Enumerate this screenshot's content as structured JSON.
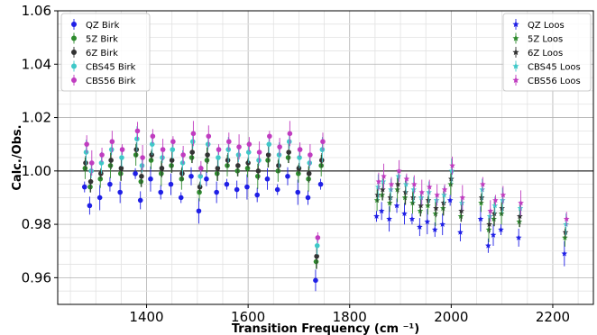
{
  "chart_data": {
    "type": "scatter",
    "xlabel": "Transition Frequency  (cm ⁻¹)",
    "ylabel": "Calc./Obs.",
    "xlim": [
      1225,
      2280
    ],
    "ylim": [
      0.95,
      1.06
    ],
    "xticks": [
      1400,
      1600,
      1800,
      2000,
      2200
    ],
    "yticks": [
      0.96,
      0.98,
      1.0,
      1.02,
      1.04,
      1.06
    ],
    "xtick_labels": [
      "1400",
      "1600",
      "1800",
      "2000",
      "2200"
    ],
    "ytick_labels": [
      "0.96",
      "0.98",
      "1.00",
      "1.02",
      "1.04",
      "1.06"
    ],
    "grid": true,
    "reference_line": 1.0,
    "legends": [
      {
        "placement": "upper-left",
        "entries": [
          "QZ Birk",
          "5Z Birk",
          "6Z Birk",
          "CBS45 Birk",
          "CBS56 Birk"
        ]
      },
      {
        "placement": "upper-right",
        "entries": [
          "QZ Loos",
          "5Z Loos",
          "6Z Loos",
          "CBS45 Loos",
          "CBS56 Loos"
        ]
      }
    ],
    "series": [
      {
        "name": "QZ Birk",
        "group": "birk",
        "color": "#1f1fe6",
        "marker": "circle",
        "offset": -0.009,
        "x": [
          1280,
          1290,
          1310,
          1330,
          1350,
          1380,
          1390,
          1410,
          1430,
          1450,
          1470,
          1490,
          1505,
          1520,
          1540,
          1560,
          1580,
          1600,
          1620,
          1640,
          1660,
          1680,
          1700,
          1720,
          1735,
          1745
        ],
        "y": [
          1.003,
          0.996,
          0.999,
          1.004,
          1.001,
          1.008,
          0.998,
          1.006,
          1.001,
          1.004,
          0.999,
          1.007,
          0.994,
          1.006,
          1.001,
          1.004,
          1.002,
          1.003,
          1.0,
          1.006,
          1.002,
          1.007,
          1.001,
          0.999,
          0.968,
          1.004
        ]
      },
      {
        "name": "5Z Birk",
        "group": "birk",
        "color": "#2e8b2e",
        "marker": "circle",
        "offset": -0.002,
        "x": [
          1280,
          1290,
          1310,
          1330,
          1350,
          1380,
          1390,
          1410,
          1430,
          1450,
          1470,
          1490,
          1505,
          1520,
          1540,
          1560,
          1580,
          1600,
          1620,
          1640,
          1660,
          1680,
          1700,
          1720,
          1735,
          1745
        ],
        "y": [
          1.003,
          0.996,
          0.999,
          1.004,
          1.001,
          1.008,
          0.998,
          1.006,
          1.001,
          1.004,
          0.999,
          1.007,
          0.994,
          1.006,
          1.001,
          1.004,
          1.002,
          1.003,
          1.0,
          1.006,
          1.002,
          1.007,
          1.001,
          0.999,
          0.968,
          1.004
        ]
      },
      {
        "name": "6Z Birk",
        "group": "birk",
        "color": "#333333",
        "marker": "circle",
        "offset": 0.0,
        "x": [
          1280,
          1290,
          1310,
          1330,
          1350,
          1380,
          1390,
          1410,
          1430,
          1450,
          1470,
          1490,
          1505,
          1520,
          1540,
          1560,
          1580,
          1600,
          1620,
          1640,
          1660,
          1680,
          1700,
          1720,
          1735,
          1745
        ],
        "y": [
          1.003,
          0.996,
          0.999,
          1.004,
          1.001,
          1.008,
          0.998,
          1.006,
          1.001,
          1.004,
          0.999,
          1.007,
          0.994,
          1.006,
          1.001,
          1.004,
          1.002,
          1.003,
          1.0,
          1.006,
          1.002,
          1.007,
          1.001,
          0.999,
          0.968,
          1.004
        ]
      },
      {
        "name": "CBS45 Birk",
        "group": "birk",
        "color": "#3fc8c8",
        "marker": "circle",
        "offset": 0.004,
        "x": [
          1280,
          1290,
          1310,
          1330,
          1350,
          1380,
          1390,
          1410,
          1430,
          1450,
          1470,
          1490,
          1505,
          1520,
          1540,
          1560,
          1580,
          1600,
          1620,
          1640,
          1660,
          1680,
          1700,
          1720,
          1735,
          1745
        ],
        "y": [
          1.003,
          0.996,
          0.999,
          1.004,
          1.001,
          1.008,
          0.998,
          1.006,
          1.001,
          1.004,
          0.999,
          1.007,
          0.994,
          1.006,
          1.001,
          1.004,
          1.002,
          1.003,
          1.0,
          1.006,
          1.002,
          1.007,
          1.001,
          0.999,
          0.968,
          1.004
        ]
      },
      {
        "name": "CBS56 Birk",
        "group": "birk",
        "color": "#c03cc0",
        "marker": "circle",
        "offset": 0.007,
        "x": [
          1280,
          1290,
          1310,
          1330,
          1350,
          1380,
          1390,
          1410,
          1430,
          1450,
          1470,
          1490,
          1505,
          1520,
          1540,
          1560,
          1580,
          1600,
          1620,
          1640,
          1660,
          1680,
          1700,
          1720,
          1735,
          1745
        ],
        "y": [
          1.003,
          0.996,
          0.999,
          1.004,
          1.001,
          1.008,
          0.998,
          1.006,
          1.001,
          1.004,
          0.999,
          1.007,
          0.994,
          1.006,
          1.001,
          1.004,
          1.002,
          1.003,
          1.0,
          1.006,
          1.002,
          1.007,
          1.001,
          0.999,
          0.968,
          1.004
        ]
      },
      {
        "name": "QZ Loos",
        "group": "loos",
        "color": "#1f1fe6",
        "marker": "star",
        "offset": -0.008,
        "x": [
          1855,
          1865,
          1880,
          1895,
          1910,
          1925,
          1940,
          1955,
          1970,
          1985,
          2000,
          2020,
          2060,
          2075,
          2085,
          2100,
          2135,
          2225
        ],
        "y": [
          0.991,
          0.993,
          0.99,
          0.995,
          0.992,
          0.99,
          0.987,
          0.989,
          0.986,
          0.988,
          0.997,
          0.985,
          0.99,
          0.98,
          0.984,
          0.986,
          0.983,
          0.977
        ]
      },
      {
        "name": "5Z Loos",
        "group": "loos",
        "color": "#2e8b2e",
        "marker": "star",
        "offset": -0.002,
        "x": [
          1855,
          1865,
          1880,
          1895,
          1910,
          1925,
          1940,
          1955,
          1970,
          1985,
          2000,
          2020,
          2060,
          2075,
          2085,
          2100,
          2135,
          2225
        ],
        "y": [
          0.991,
          0.993,
          0.99,
          0.995,
          0.992,
          0.99,
          0.987,
          0.989,
          0.986,
          0.988,
          0.997,
          0.985,
          0.99,
          0.98,
          0.984,
          0.986,
          0.983,
          0.977
        ]
      },
      {
        "name": "6Z Loos",
        "group": "loos",
        "color": "#333333",
        "marker": "star",
        "offset": 0.0,
        "x": [
          1855,
          1865,
          1880,
          1895,
          1910,
          1925,
          1940,
          1955,
          1970,
          1985,
          2000,
          2020,
          2060,
          2075,
          2085,
          2100,
          2135,
          2225
        ],
        "y": [
          0.991,
          0.993,
          0.99,
          0.995,
          0.992,
          0.99,
          0.987,
          0.989,
          0.986,
          0.988,
          0.997,
          0.985,
          0.99,
          0.98,
          0.984,
          0.986,
          0.983,
          0.977
        ]
      },
      {
        "name": "CBS45 Loos",
        "group": "loos",
        "color": "#3fc8c8",
        "marker": "star",
        "offset": 0.003,
        "x": [
          1855,
          1865,
          1880,
          1895,
          1910,
          1925,
          1940,
          1955,
          1970,
          1985,
          2000,
          2020,
          2060,
          2075,
          2085,
          2100,
          2135,
          2225
        ],
        "y": [
          0.991,
          0.993,
          0.99,
          0.995,
          0.992,
          0.99,
          0.987,
          0.989,
          0.986,
          0.988,
          0.997,
          0.985,
          0.99,
          0.98,
          0.984,
          0.986,
          0.983,
          0.977
        ]
      },
      {
        "name": "CBS56 Loos",
        "group": "loos",
        "color": "#c03cc0",
        "marker": "star",
        "offset": 0.005,
        "x": [
          1855,
          1865,
          1880,
          1895,
          1910,
          1925,
          1940,
          1955,
          1970,
          1985,
          2000,
          2020,
          2060,
          2075,
          2085,
          2100,
          2135,
          2225
        ],
        "y": [
          0.991,
          0.993,
          0.99,
          0.995,
          0.992,
          0.99,
          0.987,
          0.989,
          0.986,
          0.988,
          0.997,
          0.985,
          0.99,
          0.98,
          0.984,
          0.986,
          0.983,
          0.977
        ]
      }
    ]
  }
}
